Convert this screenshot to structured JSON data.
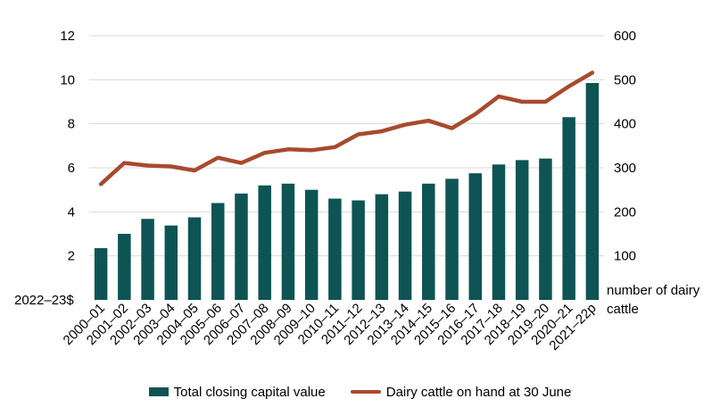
{
  "chart_data": {
    "type": "bar+line",
    "categories": [
      "2000–01",
      "2001–02",
      "2002–03",
      "2003–04",
      "2004–05",
      "2005–06",
      "2006–07",
      "2007–08",
      "2008–09",
      "2009–10",
      "2010–11",
      "2011–12",
      "2012–13",
      "2013–14",
      "2014–15",
      "2015–16",
      "2016–17",
      "2017–18",
      "2018–19",
      "2019–20",
      "2020–21",
      "2021–22p"
    ],
    "series": [
      {
        "name": "Total closing capital value",
        "type": "bar",
        "axis": "left",
        "color": "#0e5454",
        "values": [
          2.35,
          3.0,
          3.68,
          3.38,
          3.75,
          4.4,
          4.83,
          5.2,
          5.28,
          5.0,
          4.6,
          4.52,
          4.8,
          4.92,
          5.28,
          5.5,
          5.75,
          6.15,
          6.35,
          6.42,
          8.3,
          9.85
        ]
      },
      {
        "name": "Dairy cattle on hand at 30 June",
        "type": "line",
        "axis": "right",
        "color": "#a84a2e",
        "values": [
          263,
          311,
          305,
          303,
          294,
          323,
          311,
          334,
          342,
          340,
          347,
          376,
          383,
          398,
          407,
          390,
          422,
          462,
          450,
          450,
          485,
          516
        ]
      }
    ],
    "y_left": {
      "label": "2022–23$",
      "ylim": [
        0,
        12
      ],
      "ticks": [
        2,
        4,
        6,
        8,
        10,
        12
      ]
    },
    "y_right": {
      "label": "number of dairy cattle",
      "ylim": [
        0,
        600
      ],
      "ticks": [
        100,
        200,
        300,
        400,
        500,
        600
      ]
    },
    "grid": true,
    "legend_position": "bottom"
  },
  "labels": {
    "left_unit": "2022–23$",
    "right_unit_line1": "number of dairy",
    "right_unit_line2": "cattle"
  },
  "legend": {
    "bar_label": "Total closing capital value",
    "line_label": "Dairy cattle on hand at 30 June"
  }
}
